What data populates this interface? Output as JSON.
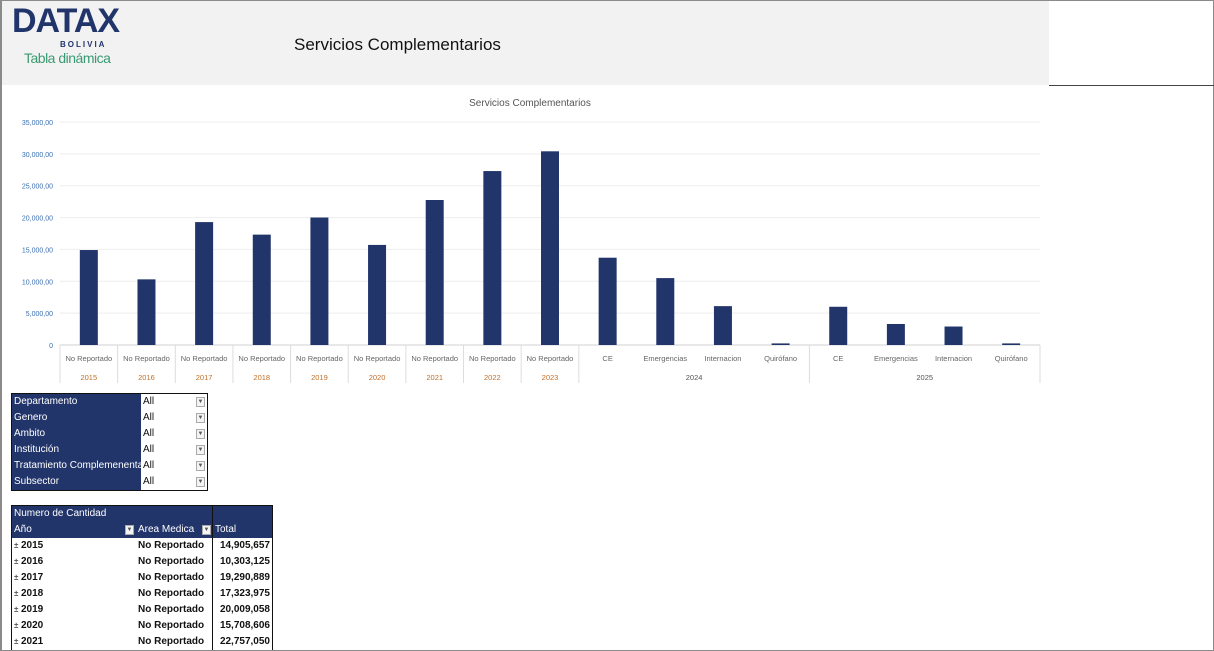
{
  "header": {
    "logo_text": "DATAX",
    "logo_sub": "BOLIVIA",
    "tagline": "Tabla dinámica",
    "title": "Servicios Complementarios"
  },
  "colors": {
    "bar": "#22356b",
    "header_bg": "#f2f2f2",
    "axis_text": "#3a6fb0",
    "year_text": "#c0702a"
  },
  "chart_data": {
    "type": "bar",
    "title": "Servicios Complementarios",
    "ylim": [
      0,
      35000000
    ],
    "y_ticks": [
      "0",
      "5,000,00",
      "10,000,00",
      "15,000,00",
      "20,000,00",
      "25,000,00",
      "30,000,00",
      "35,000,00"
    ],
    "grid": true,
    "categories": [
      "No Reportado",
      "No Reportado",
      "No Reportado",
      "No Reportado",
      "No Reportado",
      "No Reportado",
      "No Reportado",
      "No Reportado",
      "No Reportado",
      "CE",
      "Emergencias",
      "Internacion",
      "Quirófano",
      "CE",
      "Emergencias",
      "Internacion",
      "Quirófano"
    ],
    "groups": [
      {
        "label": "2015",
        "span": 1
      },
      {
        "label": "2016",
        "span": 1
      },
      {
        "label": "2017",
        "span": 1
      },
      {
        "label": "2018",
        "span": 1
      },
      {
        "label": "2019",
        "span": 1
      },
      {
        "label": "2020",
        "span": 1
      },
      {
        "label": "2021",
        "span": 1
      },
      {
        "label": "2022",
        "span": 1
      },
      {
        "label": "2023",
        "span": 1
      },
      {
        "label": "2024",
        "span": 4
      },
      {
        "label": "2025",
        "span": 4
      }
    ],
    "values": [
      14905657,
      10303125,
      19290889,
      17323975,
      20009058,
      15708606,
      22757050,
      27300000,
      30400000,
      13700000,
      10500000,
      6100000,
      250000,
      6000000,
      3300000,
      2900000,
      250000
    ]
  },
  "filters": [
    {
      "label": "Departamento",
      "value": "All"
    },
    {
      "label": "Genero",
      "value": "All"
    },
    {
      "label": "Ambito",
      "value": "All"
    },
    {
      "label": "Institución",
      "value": "All"
    },
    {
      "label": "Tratamiento Complemenentari",
      "value": "All"
    },
    {
      "label": "Subsector",
      "value": "All"
    }
  ],
  "pivot": {
    "measure": "Numero de Cantidad",
    "col_year": "Año",
    "col_area": "Area Medica",
    "col_total": "Total",
    "rows": [
      {
        "year": "2015",
        "area": "No Reportado",
        "total": "14,905,657"
      },
      {
        "year": "2016",
        "area": "No Reportado",
        "total": "10,303,125"
      },
      {
        "year": "2017",
        "area": "No Reportado",
        "total": "19,290,889"
      },
      {
        "year": "2018",
        "area": "No Reportado",
        "total": "17,323,975"
      },
      {
        "year": "2019",
        "area": "No Reportado",
        "total": "20,009,058"
      },
      {
        "year": "2020",
        "area": "No Reportado",
        "total": "15,708,606"
      },
      {
        "year": "2021",
        "area": "No Reportado",
        "total": "22,757,050"
      }
    ]
  }
}
